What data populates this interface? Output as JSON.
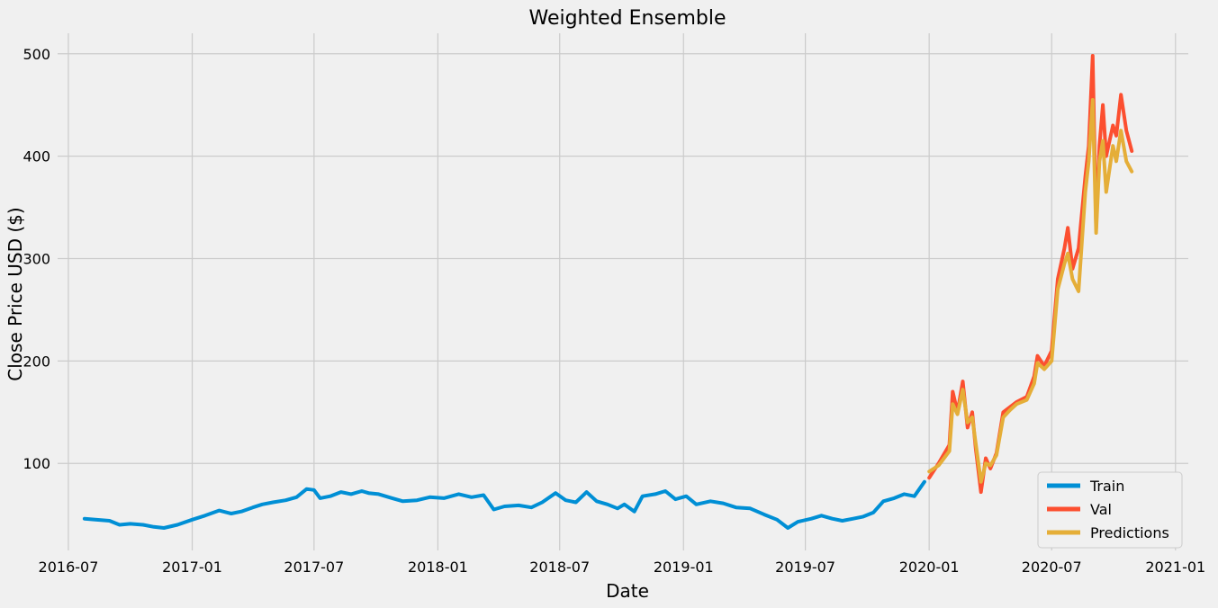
{
  "chart_data": {
    "type": "line",
    "title": "Weighted Ensemble",
    "xlabel": "Date",
    "ylabel": "Close Price USD ($)",
    "xlim": [
      "2016-06-15",
      "2021-01-20"
    ],
    "ylim": [
      15,
      520
    ],
    "grid": true,
    "legend_position": "bottom-right",
    "x_ticks": [
      "2016-07",
      "2017-01",
      "2017-07",
      "2018-01",
      "2018-07",
      "2019-01",
      "2019-07",
      "2020-01",
      "2020-07",
      "2021-01"
    ],
    "y_ticks": [
      100,
      200,
      300,
      400,
      500
    ],
    "colors": {
      "background": "#f0f0f0",
      "grid": "#cbcbcb",
      "train": "#008fd5",
      "val": "#fc4f30",
      "predictions": "#e5ae38"
    },
    "series": [
      {
        "name": "Train",
        "points": [
          [
            "2016-07-25",
            46
          ],
          [
            "2016-08-10",
            45
          ],
          [
            "2016-08-31",
            44
          ],
          [
            "2016-09-15",
            40
          ],
          [
            "2016-10-01",
            41
          ],
          [
            "2016-10-20",
            40
          ],
          [
            "2016-11-05",
            38
          ],
          [
            "2016-11-20",
            37
          ],
          [
            "2016-12-10",
            40
          ],
          [
            "2017-01-01",
            45
          ],
          [
            "2017-01-20",
            49
          ],
          [
            "2017-02-10",
            54
          ],
          [
            "2017-02-28",
            51
          ],
          [
            "2017-03-15",
            53
          ],
          [
            "2017-04-01",
            57
          ],
          [
            "2017-04-15",
            60
          ],
          [
            "2017-05-01",
            62
          ],
          [
            "2017-05-20",
            64
          ],
          [
            "2017-06-05",
            67
          ],
          [
            "2017-06-20",
            75
          ],
          [
            "2017-07-01",
            74
          ],
          [
            "2017-07-10",
            66
          ],
          [
            "2017-07-25",
            68
          ],
          [
            "2017-08-10",
            72
          ],
          [
            "2017-08-25",
            70
          ],
          [
            "2017-09-10",
            73
          ],
          [
            "2017-09-20",
            71
          ],
          [
            "2017-10-05",
            70
          ],
          [
            "2017-10-25",
            66
          ],
          [
            "2017-11-10",
            63
          ],
          [
            "2017-12-01",
            64
          ],
          [
            "2017-12-20",
            67
          ],
          [
            "2018-01-10",
            66
          ],
          [
            "2018-02-01",
            70
          ],
          [
            "2018-02-20",
            67
          ],
          [
            "2018-03-10",
            69
          ],
          [
            "2018-03-25",
            55
          ],
          [
            "2018-04-10",
            58
          ],
          [
            "2018-05-01",
            59
          ],
          [
            "2018-05-20",
            57
          ],
          [
            "2018-06-05",
            62
          ],
          [
            "2018-06-25",
            71
          ],
          [
            "2018-07-10",
            64
          ],
          [
            "2018-07-25",
            62
          ],
          [
            "2018-08-10",
            72
          ],
          [
            "2018-08-25",
            63
          ],
          [
            "2018-09-10",
            60
          ],
          [
            "2018-09-25",
            56
          ],
          [
            "2018-10-05",
            60
          ],
          [
            "2018-10-20",
            53
          ],
          [
            "2018-11-01",
            68
          ],
          [
            "2018-11-20",
            70
          ],
          [
            "2018-12-05",
            73
          ],
          [
            "2018-12-20",
            65
          ],
          [
            "2019-01-05",
            68
          ],
          [
            "2019-01-20",
            60
          ],
          [
            "2019-02-10",
            63
          ],
          [
            "2019-03-01",
            61
          ],
          [
            "2019-03-20",
            57
          ],
          [
            "2019-04-10",
            56
          ],
          [
            "2019-05-01",
            50
          ],
          [
            "2019-05-20",
            45
          ],
          [
            "2019-06-05",
            37
          ],
          [
            "2019-06-20",
            43
          ],
          [
            "2019-07-10",
            46
          ],
          [
            "2019-07-25",
            49
          ],
          [
            "2019-08-10",
            46
          ],
          [
            "2019-08-25",
            44
          ],
          [
            "2019-09-10",
            46
          ],
          [
            "2019-09-25",
            48
          ],
          [
            "2019-10-10",
            52
          ],
          [
            "2019-10-25",
            63
          ],
          [
            "2019-11-10",
            66
          ],
          [
            "2019-11-25",
            70
          ],
          [
            "2019-12-10",
            68
          ],
          [
            "2019-12-25",
            82
          ]
        ]
      },
      {
        "name": "Val",
        "points": [
          [
            "2020-01-01",
            86
          ],
          [
            "2020-01-15",
            100
          ],
          [
            "2020-01-31",
            118
          ],
          [
            "2020-02-05",
            170
          ],
          [
            "2020-02-12",
            150
          ],
          [
            "2020-02-20",
            180
          ],
          [
            "2020-02-27",
            135
          ],
          [
            "2020-03-05",
            150
          ],
          [
            "2020-03-10",
            115
          ],
          [
            "2020-03-18",
            72
          ],
          [
            "2020-03-25",
            105
          ],
          [
            "2020-04-01",
            95
          ],
          [
            "2020-04-10",
            110
          ],
          [
            "2020-04-20",
            150
          ],
          [
            "2020-04-30",
            155
          ],
          [
            "2020-05-10",
            160
          ],
          [
            "2020-05-25",
            165
          ],
          [
            "2020-06-05",
            185
          ],
          [
            "2020-06-10",
            205
          ],
          [
            "2020-06-20",
            195
          ],
          [
            "2020-07-01",
            210
          ],
          [
            "2020-07-10",
            280
          ],
          [
            "2020-07-20",
            310
          ],
          [
            "2020-07-25",
            330
          ],
          [
            "2020-08-01",
            290
          ],
          [
            "2020-08-10",
            310
          ],
          [
            "2020-08-20",
            380
          ],
          [
            "2020-08-25",
            410
          ],
          [
            "2020-08-31",
            498
          ],
          [
            "2020-09-05",
            330
          ],
          [
            "2020-09-10",
            410
          ],
          [
            "2020-09-15",
            450
          ],
          [
            "2020-09-20",
            400
          ],
          [
            "2020-09-30",
            430
          ],
          [
            "2020-10-05",
            420
          ],
          [
            "2020-10-12",
            460
          ],
          [
            "2020-10-20",
            425
          ],
          [
            "2020-10-28",
            405
          ]
        ]
      },
      {
        "name": "Predictions",
        "points": [
          [
            "2020-01-01",
            92
          ],
          [
            "2020-01-15",
            98
          ],
          [
            "2020-01-31",
            112
          ],
          [
            "2020-02-05",
            158
          ],
          [
            "2020-02-12",
            148
          ],
          [
            "2020-02-20",
            172
          ],
          [
            "2020-02-27",
            140
          ],
          [
            "2020-03-05",
            145
          ],
          [
            "2020-03-10",
            120
          ],
          [
            "2020-03-18",
            82
          ],
          [
            "2020-03-25",
            100
          ],
          [
            "2020-04-01",
            98
          ],
          [
            "2020-04-10",
            108
          ],
          [
            "2020-04-20",
            145
          ],
          [
            "2020-04-30",
            152
          ],
          [
            "2020-05-10",
            158
          ],
          [
            "2020-05-25",
            162
          ],
          [
            "2020-06-05",
            178
          ],
          [
            "2020-06-10",
            198
          ],
          [
            "2020-06-20",
            192
          ],
          [
            "2020-07-01",
            200
          ],
          [
            "2020-07-10",
            270
          ],
          [
            "2020-07-20",
            295
          ],
          [
            "2020-07-25",
            305
          ],
          [
            "2020-08-01",
            280
          ],
          [
            "2020-08-10",
            268
          ],
          [
            "2020-08-20",
            365
          ],
          [
            "2020-08-25",
            395
          ],
          [
            "2020-08-31",
            455
          ],
          [
            "2020-09-05",
            325
          ],
          [
            "2020-09-10",
            395
          ],
          [
            "2020-09-15",
            415
          ],
          [
            "2020-09-20",
            365
          ],
          [
            "2020-09-30",
            410
          ],
          [
            "2020-10-05",
            395
          ],
          [
            "2020-10-12",
            425
          ],
          [
            "2020-10-20",
            395
          ],
          [
            "2020-10-28",
            385
          ]
        ]
      }
    ]
  }
}
